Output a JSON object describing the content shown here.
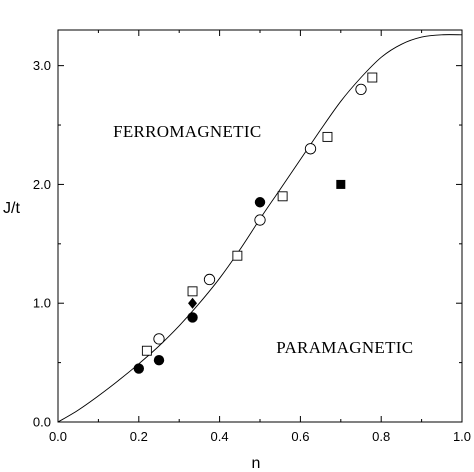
{
  "chart_data": {
    "type": "scatter",
    "title": "",
    "xlabel": "n",
    "ylabel": "J/t",
    "xlim": [
      0.0,
      1.0
    ],
    "ylim": [
      0.0,
      3.3
    ],
    "x_ticks": [
      "0.0",
      "0.2",
      "0.4",
      "0.6",
      "0.8",
      "1.0"
    ],
    "y_ticks": [
      "0.0",
      "1.0",
      "2.0",
      "3.0"
    ],
    "x_tick_values": [
      0.0,
      0.2,
      0.4,
      0.6,
      0.8,
      1.0
    ],
    "y_tick_values": [
      0.0,
      1.0,
      2.0,
      3.0
    ],
    "grid": false,
    "annotations": [
      {
        "text": "FERROMAGNETIC",
        "x": 0.32,
        "y": 2.4
      },
      {
        "text": "PARAMAGNETIC",
        "x": 0.71,
        "y": 0.58
      }
    ],
    "boundary_curve": {
      "x": [
        0.0,
        0.05,
        0.1,
        0.15,
        0.2,
        0.25,
        0.3,
        0.35,
        0.4,
        0.45,
        0.5,
        0.55,
        0.6,
        0.65,
        0.7,
        0.75,
        0.8,
        0.85,
        0.9,
        0.95,
        1.0
      ],
      "y": [
        0.0,
        0.1,
        0.22,
        0.35,
        0.49,
        0.64,
        0.81,
        1.0,
        1.21,
        1.45,
        1.71,
        1.96,
        2.21,
        2.46,
        2.7,
        2.9,
        3.07,
        3.18,
        3.24,
        3.26,
        3.26
      ]
    },
    "series": [
      {
        "marker": "open-square",
        "x": [
          0.22,
          0.333,
          0.444,
          0.556,
          0.667,
          0.778
        ],
        "y": [
          0.6,
          1.1,
          1.4,
          1.9,
          2.4,
          2.9
        ]
      },
      {
        "marker": "open-circle",
        "x": [
          0.25,
          0.375,
          0.5,
          0.625,
          0.75
        ],
        "y": [
          0.7,
          1.2,
          1.7,
          2.3,
          2.8
        ]
      },
      {
        "marker": "filled-circle",
        "x": [
          0.2,
          0.25,
          0.333,
          0.5
        ],
        "y": [
          0.45,
          0.52,
          0.88,
          1.85
        ]
      },
      {
        "marker": "filled-diamond",
        "x": [
          0.333
        ],
        "y": [
          1.0
        ]
      },
      {
        "marker": "filled-square",
        "x": [
          0.7
        ],
        "y": [
          2.0
        ]
      }
    ]
  }
}
